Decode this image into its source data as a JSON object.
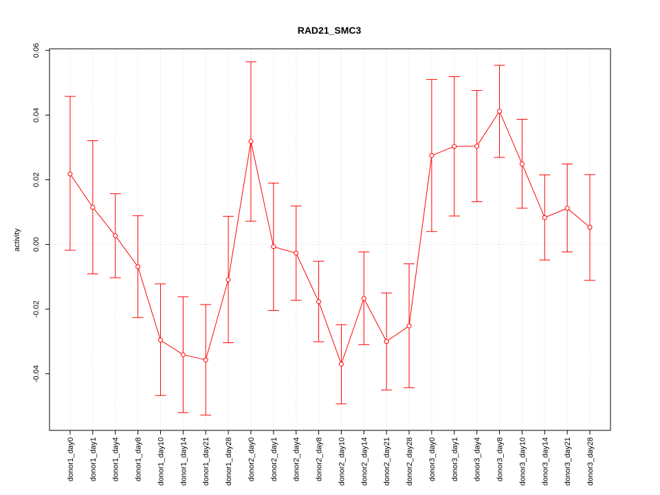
{
  "chart_data": {
    "type": "line",
    "title": "RAD21_SMC3",
    "xlabel": "",
    "ylabel": "activity",
    "ylim": [
      -0.0575,
      0.0605
    ],
    "yticks": [
      -0.04,
      -0.02,
      0.0,
      0.02,
      0.04,
      0.06
    ],
    "ytick_labels": [
      "-0.04",
      "-0.02",
      "0.00",
      "0.02",
      "0.04",
      "0.06"
    ],
    "grid": true,
    "categories": [
      "donor1_day0",
      "donor1_day1",
      "donor1_day4",
      "donor1_day8",
      "donor1_day10",
      "donor1_day14",
      "donor1_day21",
      "donor1_day28",
      "donor2_day0",
      "donor2_day1",
      "donor2_day4",
      "donor2_day8",
      "donor2_day10",
      "donor2_day14",
      "donor2_day21",
      "donor2_day28",
      "donor3_day0",
      "donor3_day1",
      "donor3_day4",
      "donor3_day8",
      "donor3_day10",
      "donor3_day14",
      "donor3_day21",
      "donor3_day28"
    ],
    "series": [
      {
        "color": "#ff0000",
        "values": [
          0.0218,
          0.0115,
          0.0027,
          -0.0069,
          -0.0296,
          -0.0341,
          -0.0357,
          -0.0109,
          0.0319,
          -0.0007,
          -0.0027,
          -0.0177,
          -0.037,
          -0.0167,
          -0.03,
          -0.0252,
          0.0275,
          0.0303,
          0.0304,
          0.0412,
          0.0249,
          0.0083,
          0.0112,
          0.0053
        ],
        "upper": [
          0.0458,
          0.0321,
          0.0157,
          0.0089,
          -0.0122,
          -0.0162,
          -0.0186,
          0.0087,
          0.0565,
          0.019,
          0.0119,
          -0.0052,
          -0.0248,
          -0.0023,
          -0.015,
          -0.006,
          0.051,
          0.0519,
          0.0476,
          0.0554,
          0.0387,
          0.0215,
          0.0249,
          0.0216
        ],
        "lower": [
          -0.0018,
          -0.0091,
          -0.0103,
          -0.0226,
          -0.0467,
          -0.052,
          -0.0528,
          -0.0304,
          0.0072,
          -0.0204,
          -0.0173,
          -0.0301,
          -0.0493,
          -0.031,
          -0.045,
          -0.0443,
          0.004,
          0.0088,
          0.0132,
          0.0269,
          0.0112,
          -0.0048,
          -0.0023,
          -0.0111
        ]
      }
    ]
  }
}
